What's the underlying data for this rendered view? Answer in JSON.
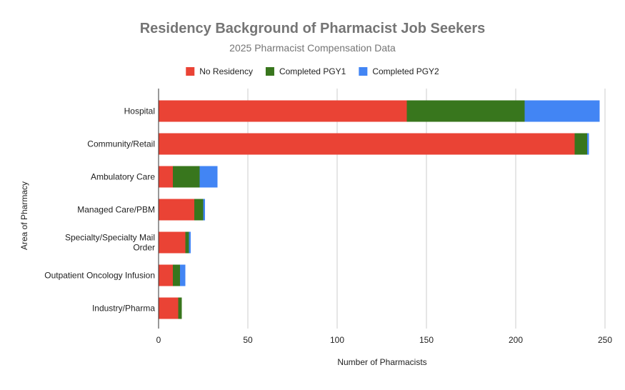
{
  "chart_data": {
    "type": "bar",
    "orientation": "horizontal",
    "stacked": true,
    "title": "Residency Background of Pharmacist Job Seekers",
    "subtitle": "2025 Pharmacist Compensation Data",
    "xlabel": "Number of Pharmacists",
    "ylabel": "Area of Pharmacy",
    "xlim": [
      0,
      250
    ],
    "x_ticks": [
      0,
      50,
      100,
      150,
      200,
      250
    ],
    "grid": "vertical",
    "legend_position": "top",
    "categories": [
      "Hospital",
      "Community/Retail",
      "Ambulatory Care",
      "Managed Care/PBM",
      "Specialty/Specialty Mail Order",
      "Outpatient Oncology Infusion",
      "Industry/Pharma"
    ],
    "category_label_lines": [
      [
        "Hospital"
      ],
      [
        "Community/Retail"
      ],
      [
        "Ambulatory Care"
      ],
      [
        "Managed Care/PBM"
      ],
      [
        "Specialty/Specialty Mail",
        "Order"
      ],
      [
        "Outpatient Oncology Infusion"
      ],
      [
        "Industry/Pharma"
      ]
    ],
    "series": [
      {
        "name": "No Residency",
        "color": "#ea4335",
        "values": [
          139,
          233,
          8,
          20,
          15,
          8,
          11
        ]
      },
      {
        "name": "Completed PGY1",
        "color": "#38761d",
        "values": [
          66,
          7,
          15,
          5,
          2,
          4,
          2
        ]
      },
      {
        "name": "Completed PGY2",
        "color": "#4285f4",
        "values": [
          42,
          1,
          10,
          1,
          1,
          3,
          0
        ]
      }
    ]
  }
}
